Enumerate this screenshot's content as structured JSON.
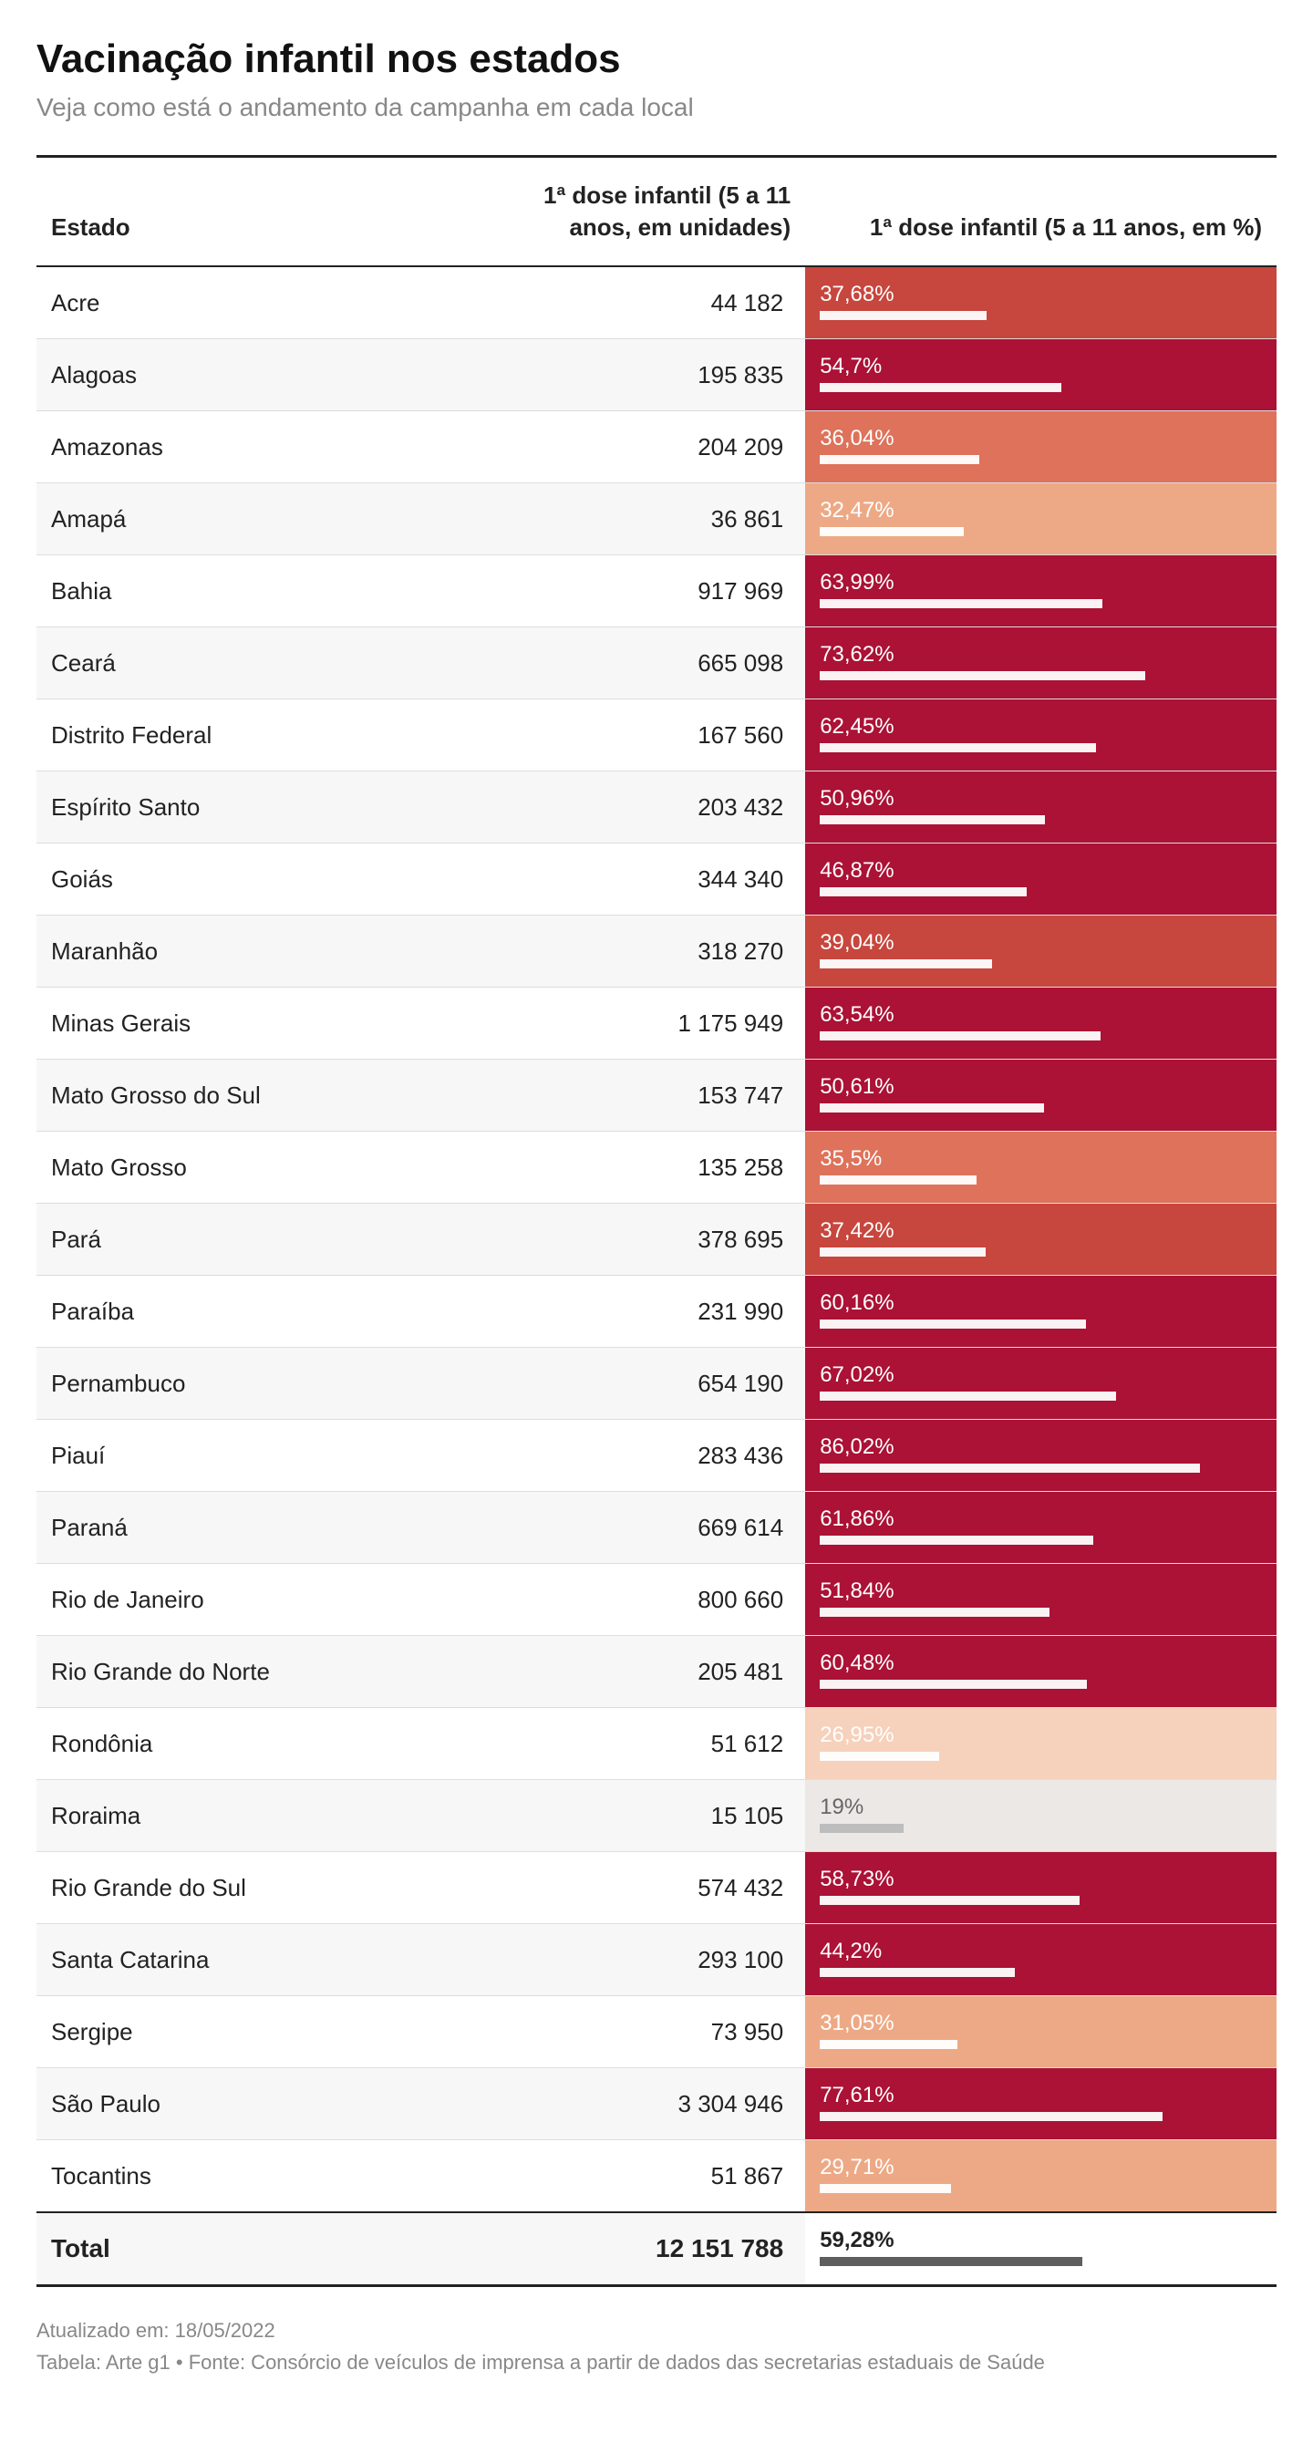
{
  "title": "Vacinação infantil nos estados",
  "subtitle": "Veja como está o andamento da campanha em cada local",
  "columns": {
    "state": "Estado",
    "units": "1ª dose infantil (5 a 11 anos, em unidades)",
    "pct": "1ª dose infantil (5 a 11 anos, em %)"
  },
  "color_scale": {
    "stops": [
      {
        "max": 20,
        "bg": "#ece8e6"
      },
      {
        "max": 28,
        "bg": "#f6d1bb"
      },
      {
        "max": 33,
        "bg": "#eda985"
      },
      {
        "max": 37,
        "bg": "#de725a"
      },
      {
        "max": 41,
        "bg": "#c7463d"
      },
      {
        "max": 100,
        "bg": "#ab1235"
      }
    ]
  },
  "rows": [
    {
      "state": "Acre",
      "units": "44 182",
      "pct": 37.68,
      "pct_label": "37,68%"
    },
    {
      "state": "Alagoas",
      "units": "195 835",
      "pct": 54.7,
      "pct_label": "54,7%"
    },
    {
      "state": "Amazonas",
      "units": "204 209",
      "pct": 36.04,
      "pct_label": "36,04%"
    },
    {
      "state": "Amapá",
      "units": "36 861",
      "pct": 32.47,
      "pct_label": "32,47%"
    },
    {
      "state": "Bahia",
      "units": "917 969",
      "pct": 63.99,
      "pct_label": "63,99%"
    },
    {
      "state": "Ceará",
      "units": "665 098",
      "pct": 73.62,
      "pct_label": "73,62%"
    },
    {
      "state": "Distrito Federal",
      "units": "167 560",
      "pct": 62.45,
      "pct_label": "62,45%"
    },
    {
      "state": "Espírito Santo",
      "units": "203 432",
      "pct": 50.96,
      "pct_label": "50,96%"
    },
    {
      "state": "Goiás",
      "units": "344 340",
      "pct": 46.87,
      "pct_label": "46,87%"
    },
    {
      "state": "Maranhão",
      "units": "318 270",
      "pct": 39.04,
      "pct_label": "39,04%"
    },
    {
      "state": "Minas Gerais",
      "units": "1 175 949",
      "pct": 63.54,
      "pct_label": "63,54%"
    },
    {
      "state": "Mato Grosso do Sul",
      "units": "153 747",
      "pct": 50.61,
      "pct_label": "50,61%"
    },
    {
      "state": "Mato Grosso",
      "units": "135 258",
      "pct": 35.5,
      "pct_label": "35,5%"
    },
    {
      "state": "Pará",
      "units": "378 695",
      "pct": 37.42,
      "pct_label": "37,42%"
    },
    {
      "state": "Paraíba",
      "units": "231 990",
      "pct": 60.16,
      "pct_label": "60,16%"
    },
    {
      "state": "Pernambuco",
      "units": "654 190",
      "pct": 67.02,
      "pct_label": "67,02%"
    },
    {
      "state": "Piauí",
      "units": "283 436",
      "pct": 86.02,
      "pct_label": "86,02%"
    },
    {
      "state": "Paraná",
      "units": "669 614",
      "pct": 61.86,
      "pct_label": "61,86%"
    },
    {
      "state": "Rio de Janeiro",
      "units": "800 660",
      "pct": 51.84,
      "pct_label": "51,84%"
    },
    {
      "state": "Rio Grande do Norte",
      "units": "205 481",
      "pct": 60.48,
      "pct_label": "60,48%"
    },
    {
      "state": "Rondônia",
      "units": "51 612",
      "pct": 26.95,
      "pct_label": "26,95%"
    },
    {
      "state": "Roraima",
      "units": "15 105",
      "pct": 19,
      "pct_label": "19%"
    },
    {
      "state": "Rio Grande do Sul",
      "units": "574 432",
      "pct": 58.73,
      "pct_label": "58,73%"
    },
    {
      "state": "Santa Catarina",
      "units": "293 100",
      "pct": 44.2,
      "pct_label": "44,2%"
    },
    {
      "state": "Sergipe",
      "units": "73 950",
      "pct": 31.05,
      "pct_label": "31,05%"
    },
    {
      "state": "São Paulo",
      "units": "3 304 946",
      "pct": 77.61,
      "pct_label": "77,61%"
    },
    {
      "state": "Tocantins",
      "units": "51 867",
      "pct": 29.71,
      "pct_label": "29,71%"
    }
  ],
  "total": {
    "label": "Total",
    "units": "12 151 788",
    "pct": 59.28,
    "pct_label": "59,28%"
  },
  "footer": {
    "updated": "Atualizado em: 18/05/2022",
    "source": "Tabela: Arte g1 • Fonte: Consórcio de veículos de imprensa a partir de dados das secretarias estaduais de Saúde"
  }
}
